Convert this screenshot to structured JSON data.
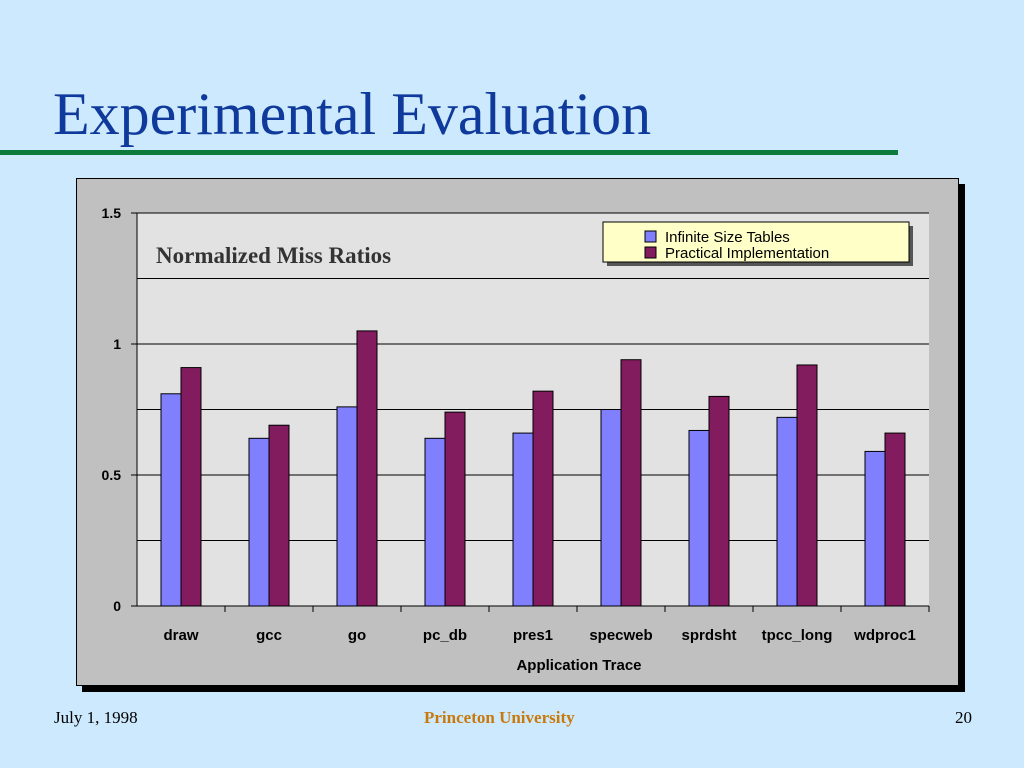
{
  "slide": {
    "title": "Experimental Evaluation",
    "footer_date": "July 1, 1998",
    "footer_org": "Princeton University",
    "page_number": "20"
  },
  "colors": {
    "background": "#cce9fd",
    "title": "#0f3a9c",
    "title_rule": "#0b7a3a",
    "footer_org": "#c8790c",
    "plot_area": "#e2e2e2",
    "chart_frame": "#c0c0c0",
    "legend_bg": "#ffffc8"
  },
  "chart_data": {
    "type": "bar",
    "title": "Normalized Miss Ratios",
    "xlabel": "Application Trace",
    "ylabel": "",
    "categories": [
      "draw",
      "gcc",
      "go",
      "pc_db",
      "pres1",
      "specweb",
      "sprdsht",
      "tpcc_long",
      "wdproc1"
    ],
    "series": [
      {
        "name": "Infinite Size Tables",
        "color": "#8080ff",
        "values": [
          0.81,
          0.64,
          0.76,
          0.64,
          0.66,
          0.75,
          0.67,
          0.72,
          0.59
        ]
      },
      {
        "name": "Practical Implementation",
        "color": "#821c5e",
        "values": [
          0.91,
          0.69,
          1.05,
          0.74,
          0.82,
          0.94,
          0.8,
          0.92,
          0.66
        ]
      }
    ],
    "ylim": [
      0,
      1.5
    ],
    "yticks": [
      0,
      0.5,
      1,
      1.5
    ],
    "ytick_labels": [
      "0",
      "0.5",
      "1",
      "1.5"
    ],
    "gridlines": [
      0.25,
      0.5,
      0.75,
      1,
      1.25,
      1.5
    ],
    "grid": true,
    "legend_position": "top-right"
  }
}
